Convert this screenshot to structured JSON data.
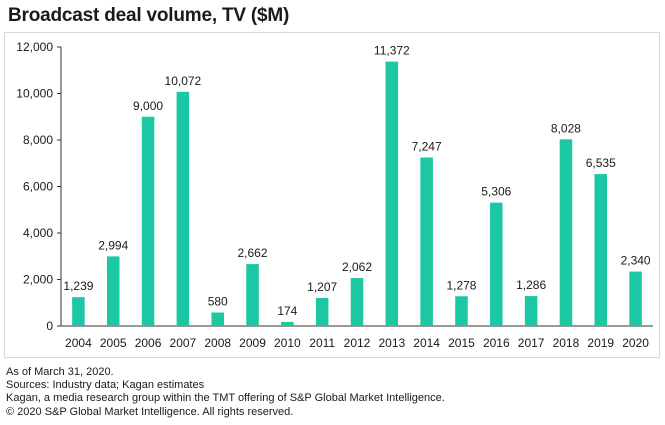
{
  "title": "Broadcast deal volume, TV ($M)",
  "chart_data": {
    "type": "bar",
    "title": "Broadcast deal volume, TV ($M)",
    "xlabel": "",
    "ylabel": "",
    "categories": [
      "2004",
      "2005",
      "2006",
      "2007",
      "2008",
      "2009",
      "2010",
      "2011",
      "2012",
      "2013",
      "2014",
      "2015",
      "2016",
      "2017",
      "2018",
      "2019",
      "2020"
    ],
    "values": [
      1239,
      2994,
      9000,
      10072,
      580,
      2662,
      174,
      1207,
      2062,
      11372,
      7247,
      1278,
      5306,
      1286,
      8028,
      6535,
      2340
    ],
    "value_labels": [
      "1,239",
      "2,994",
      "9,000",
      "10,072",
      "580",
      "2,662",
      "174",
      "1,207",
      "2,062",
      "11,372",
      "7,247",
      "1,278",
      "5,306",
      "1,286",
      "8,028",
      "6,535",
      "2,340"
    ],
    "ylim": [
      0,
      12000
    ],
    "y_ticks": [
      0,
      2000,
      4000,
      6000,
      8000,
      10000,
      12000
    ],
    "y_tick_labels": [
      "0",
      "2,000",
      "4,000",
      "6,000",
      "8,000",
      "10,000",
      "12,000"
    ],
    "grid": false,
    "legend": "none",
    "bar_color": "#1cc7a3"
  },
  "footnotes": [
    "As of March 31, 2020.",
    "Sources: Industry data; Kagan estimates",
    "Kagan, a media research group within the TMT offering of S&P Global Market Intelligence.",
    "© 2020 S&P Global Market Intelligence. All rights reserved."
  ]
}
